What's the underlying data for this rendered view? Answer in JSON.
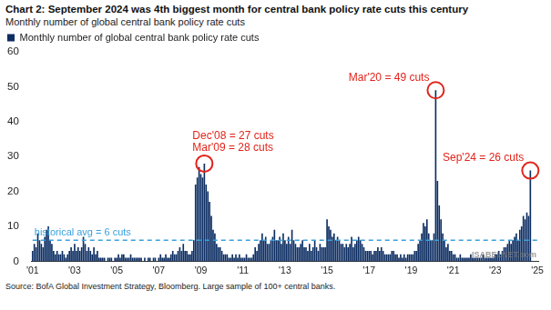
{
  "chart_data": {
    "type": "bar",
    "title": "Chart 2: September 2024 was 4th biggest month for central bank policy rate cuts this century",
    "subtitle": "Monthly number of global central bank policy rate cuts",
    "source": "Source: BofA Global Investment Strategy, Bloomberg. Large sample of 100+ central banks.",
    "watermark": "ISABELNET.com",
    "categories": [
      "'01",
      null,
      null,
      null,
      null,
      null,
      null,
      null,
      null,
      null,
      null,
      null,
      null,
      null,
      null,
      null,
      null,
      null,
      null,
      null,
      null,
      null,
      null,
      null,
      "'03",
      null,
      null,
      null,
      null,
      null,
      null,
      null,
      null,
      null,
      null,
      null,
      null,
      null,
      null,
      null,
      null,
      null,
      null,
      null,
      null,
      null,
      null,
      null,
      "'05",
      null,
      null,
      null,
      null,
      null,
      null,
      null,
      null,
      null,
      null,
      null,
      null,
      null,
      null,
      null,
      null,
      null,
      null,
      null,
      null,
      null,
      null,
      null,
      "'07",
      null,
      null,
      null,
      null,
      null,
      null,
      null,
      null,
      null,
      null,
      null,
      null,
      null,
      null,
      null,
      null,
      null,
      null,
      null,
      null,
      null,
      null,
      null,
      "'09",
      null,
      null,
      null,
      null,
      null,
      null,
      null,
      null,
      null,
      null,
      null,
      null,
      null,
      null,
      null,
      null,
      null,
      null,
      null,
      null,
      null,
      null,
      null,
      "'11",
      null,
      null,
      null,
      null,
      null,
      null,
      null,
      null,
      null,
      null,
      null,
      null,
      null,
      null,
      null,
      null,
      null,
      null,
      null,
      null,
      null,
      null,
      null,
      "'13",
      null,
      null,
      null,
      null,
      null,
      null,
      null,
      null,
      null,
      null,
      null,
      null,
      null,
      null,
      null,
      null,
      null,
      null,
      null,
      null,
      null,
      null,
      null,
      "'15",
      null,
      null,
      null,
      null,
      null,
      null,
      null,
      null,
      null,
      null,
      null,
      null,
      null,
      null,
      null,
      null,
      null,
      null,
      null,
      null,
      null,
      null,
      null,
      "'17",
      null,
      null,
      null,
      null,
      null,
      null,
      null,
      null,
      null,
      null,
      null,
      null,
      null,
      null,
      null,
      null,
      null,
      null,
      null,
      null,
      null,
      null,
      null,
      "'19",
      null,
      null,
      null,
      null,
      null,
      null,
      null,
      null,
      null,
      null,
      null,
      null,
      null,
      null,
      null,
      null,
      null,
      null,
      null,
      null,
      null,
      null,
      null,
      "'21",
      null,
      null,
      null,
      null,
      null,
      null,
      null,
      null,
      null,
      null,
      null,
      null,
      null,
      null,
      null,
      null,
      null,
      null,
      null,
      null,
      null,
      null,
      null,
      "'23",
      null,
      null,
      null,
      null,
      null,
      null,
      null,
      null,
      null,
      null,
      null,
      null,
      null,
      null,
      null,
      null,
      null,
      null,
      null,
      null,
      null,
      null,
      null,
      "'25"
    ],
    "series": [
      {
        "name": "Monthly number of global central bank policy rate cuts",
        "color": "#0c2d62",
        "values": [
          3,
          5,
          4,
          8,
          6,
          5,
          4,
          7,
          9,
          10,
          6,
          5,
          3,
          2,
          3,
          2,
          2,
          3,
          2,
          1,
          2,
          3,
          4,
          3,
          5,
          3,
          4,
          3,
          4,
          7,
          5,
          3,
          4,
          3,
          2,
          4,
          2,
          3,
          1,
          1,
          1,
          1,
          0,
          1,
          1,
          1,
          0,
          1,
          1,
          2,
          1,
          2,
          2,
          1,
          1,
          1,
          2,
          1,
          1,
          1,
          1,
          1,
          1,
          0,
          1,
          0,
          1,
          1,
          0,
          1,
          1,
          0,
          1,
          2,
          1,
          1,
          2,
          1,
          1,
          2,
          3,
          2,
          2,
          3,
          4,
          3,
          5,
          3,
          3,
          2,
          2,
          3,
          6,
          22,
          24,
          27,
          25,
          24,
          28,
          22,
          20,
          17,
          13,
          9,
          8,
          5,
          4,
          4,
          3,
          2,
          2,
          2,
          1,
          1,
          2,
          1,
          2,
          1,
          2,
          1,
          1,
          1,
          2,
          1,
          1,
          1,
          2,
          4,
          3,
          5,
          6,
          8,
          6,
          7,
          5,
          5,
          6,
          7,
          9,
          6,
          6,
          7,
          5,
          8,
          6,
          5,
          7,
          5,
          9,
          6,
          5,
          4,
          4,
          5,
          6,
          4,
          4,
          3,
          5,
          3,
          4,
          6,
          4,
          3,
          5,
          4,
          4,
          4,
          12,
          10,
          9,
          7,
          8,
          6,
          7,
          6,
          5,
          5,
          4,
          5,
          4,
          5,
          7,
          4,
          5,
          6,
          7,
          6,
          5,
          4,
          3,
          3,
          3,
          3,
          2,
          3,
          3,
          4,
          3,
          4,
          3,
          2,
          2,
          2,
          2,
          3,
          3,
          2,
          2,
          1,
          2,
          1,
          2,
          1,
          2,
          2,
          2,
          2,
          3,
          3,
          5,
          6,
          8,
          11,
          10,
          12,
          8,
          6,
          6,
          8,
          49,
          23,
          16,
          12,
          8,
          6,
          4,
          5,
          3,
          3,
          2,
          2,
          1,
          1,
          2,
          1,
          1,
          1,
          1,
          1,
          2,
          1,
          1,
          1,
          1,
          1,
          1,
          2,
          1,
          1,
          1,
          1,
          1,
          1,
          2,
          2,
          3,
          2,
          3,
          4,
          4,
          5,
          6,
          5,
          6,
          7,
          8,
          6,
          9,
          10,
          13,
          12,
          14,
          13,
          26,
          null,
          null,
          null,
          null
        ]
      }
    ],
    "reference_line": {
      "value": 6,
      "label": "historical avg = 6 cuts",
      "color": "#3aa0dc",
      "line_style": "dashed"
    },
    "annotations": [
      {
        "text": [
          "Dec'08 = 27 cuts",
          "Mar'09 = 28 cuts"
        ],
        "x": 98,
        "y": 28,
        "color": "#e2231a"
      },
      {
        "text": [
          "Mar'20 = 49 cuts"
        ],
        "x": 230,
        "y": 49,
        "color": "#e2231a"
      },
      {
        "text": [
          "Sep'24 = 26 cuts"
        ],
        "x": 284,
        "y": 26,
        "color": "#e2231a"
      }
    ],
    "ylim": [
      0,
      60
    ],
    "yticks": [
      0,
      10,
      20,
      30,
      40,
      50,
      60
    ],
    "grid": false,
    "legend": "top-left"
  }
}
